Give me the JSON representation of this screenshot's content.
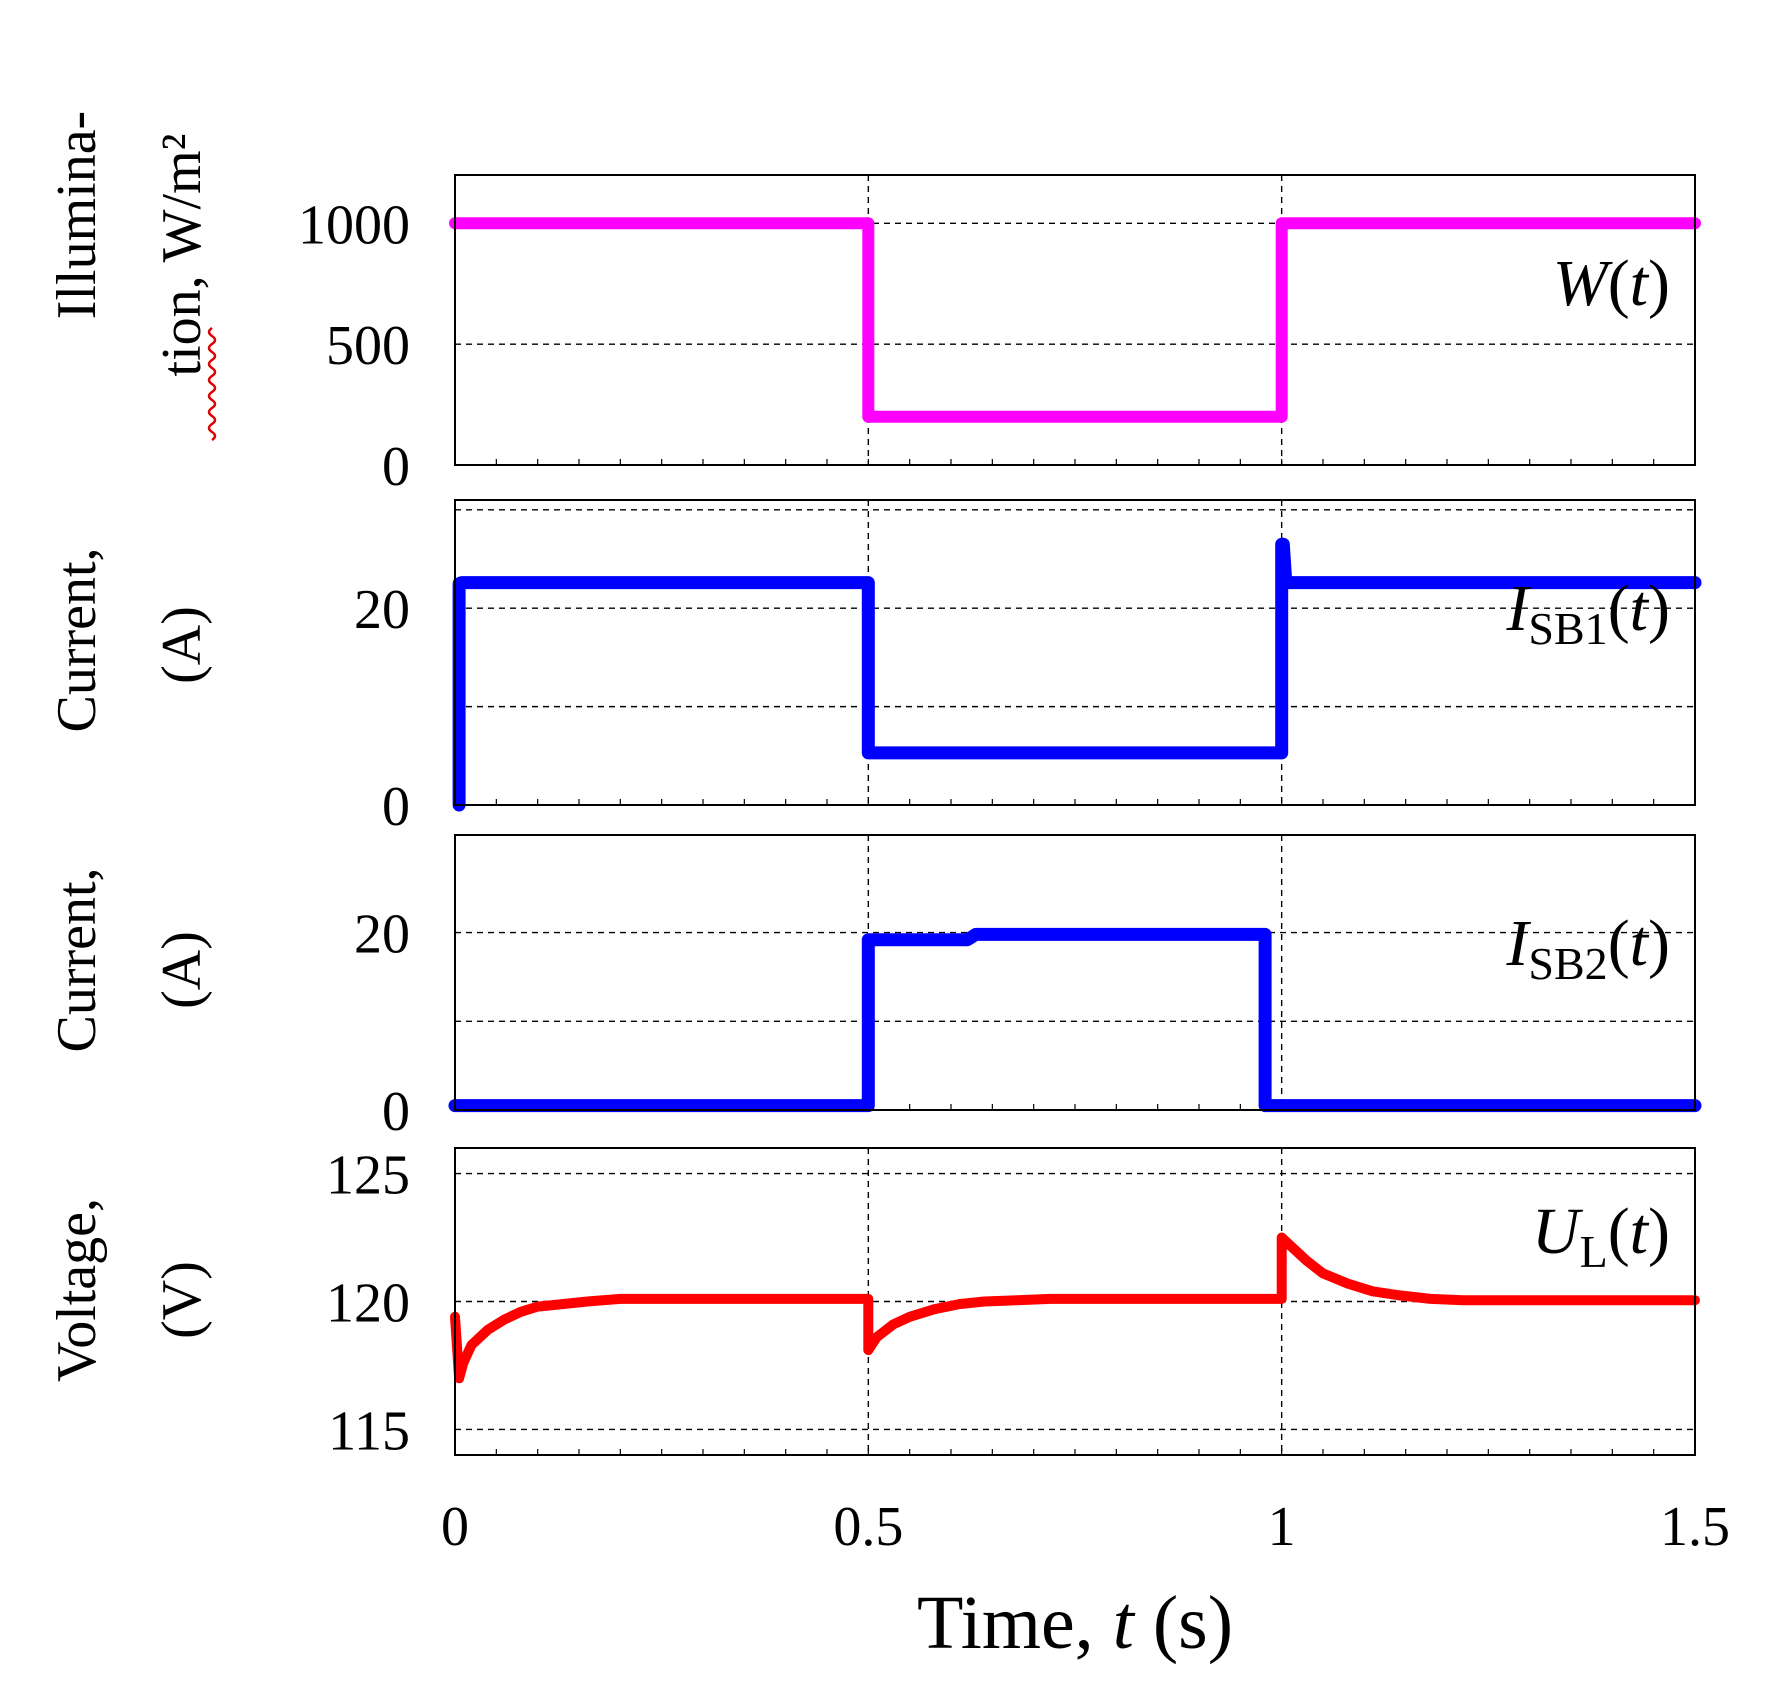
{
  "chart_data": [
    {
      "type": "line",
      "panel": "illumination",
      "ylabel_lines": [
        "Illumina-",
        "tion, W/m²"
      ],
      "ylim": [
        0,
        1200
      ],
      "yticks": [
        0,
        500,
        1000
      ],
      "ytick_labels": [
        "0",
        "500",
        "1000"
      ],
      "xlim": [
        0,
        1.5
      ],
      "grid": true,
      "color": "#ff00ff",
      "series_label": {
        "main": "W",
        "sub": "",
        "arg": "(t)"
      },
      "series": [
        {
          "name": "W(t)",
          "x": [
            0,
            0.5,
            0.5,
            1.0,
            1.0,
            1.5
          ],
          "y": [
            1000,
            1000,
            200,
            200,
            1000,
            1000
          ]
        }
      ]
    },
    {
      "type": "line",
      "panel": "current_sb1",
      "ylabel_lines": [
        "Current,",
        "(A)"
      ],
      "ylim": [
        0,
        31
      ],
      "yticks": [
        0,
        10,
        20,
        30
      ],
      "ytick_labels": [
        "0",
        "",
        "20",
        ""
      ],
      "xlim": [
        0,
        1.5
      ],
      "grid": true,
      "color": "#0000ff",
      "series_label": {
        "main": "I",
        "sub": "SB1",
        "arg": "(t)"
      },
      "series": [
        {
          "name": "ISB1(t)",
          "x": [
            0.005,
            0.005,
            0.008,
            0.5,
            0.5,
            1.0,
            1.0,
            1.002,
            1.005,
            1.5
          ],
          "y": [
            0,
            22.5,
            22.6,
            22.6,
            5.3,
            5.3,
            26.5,
            26.5,
            22.6,
            22.6
          ]
        }
      ]
    },
    {
      "type": "line",
      "panel": "current_sb2",
      "ylabel_lines": [
        "Current,",
        "(A)"
      ],
      "ylim": [
        0,
        31
      ],
      "yticks": [
        0,
        10,
        20
      ],
      "ytick_labels": [
        "0",
        "",
        "20"
      ],
      "xlim": [
        0,
        1.5
      ],
      "grid": true,
      "color": "#0000ff",
      "series_label": {
        "main": "I",
        "sub": "SB2",
        "arg": "(t)"
      },
      "series": [
        {
          "name": "ISB2(t)",
          "x": [
            0,
            0.5,
            0.5,
            0.62,
            0.63,
            0.98,
            0.98,
            1.5
          ],
          "y": [
            0.5,
            0.5,
            19.2,
            19.2,
            19.8,
            19.8,
            0.5,
            0.5
          ]
        }
      ]
    },
    {
      "type": "line",
      "panel": "voltage",
      "ylabel_lines": [
        "Voltage,",
        "(V)"
      ],
      "ylim": [
        114,
        126
      ],
      "yticks": [
        115,
        120,
        125
      ],
      "ytick_labels": [
        "115",
        "120",
        "125"
      ],
      "xlim": [
        0,
        1.5
      ],
      "grid": true,
      "color": "#ff0000",
      "series_label": {
        "main": "U",
        "sub": "L",
        "arg": "(t)"
      },
      "series": [
        {
          "name": "UL(t)",
          "x": [
            0,
            0.005,
            0.01,
            0.02,
            0.04,
            0.06,
            0.08,
            0.1,
            0.13,
            0.16,
            0.2,
            0.5,
            0.5,
            0.51,
            0.53,
            0.55,
            0.58,
            0.61,
            0.64,
            0.68,
            0.72,
            1.0,
            1.0,
            1.01,
            1.03,
            1.05,
            1.08,
            1.11,
            1.14,
            1.18,
            1.22,
            1.5
          ],
          "y": [
            119.4,
            117.0,
            117.6,
            118.3,
            118.9,
            119.3,
            119.6,
            119.8,
            119.9,
            120.0,
            120.1,
            120.1,
            118.1,
            118.6,
            119.1,
            119.4,
            119.7,
            119.9,
            120.0,
            120.05,
            120.1,
            120.1,
            122.5,
            122.2,
            121.6,
            121.1,
            120.7,
            120.4,
            120.25,
            120.1,
            120.05,
            120.05
          ]
        }
      ]
    }
  ],
  "x_axis": {
    "tick_labels": [
      "0",
      "0.5",
      "1",
      "1.5"
    ],
    "tick_values": [
      0,
      0.5,
      1.0,
      1.5
    ],
    "label_prefix": "Time, ",
    "label_var": "t",
    "label_suffix": " (s)"
  }
}
